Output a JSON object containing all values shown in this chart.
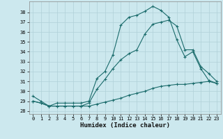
{
  "xlabel": "Humidex (Indice chaleur)",
  "xlim": [
    -0.5,
    23.5
  ],
  "ylim": [
    27.7,
    39.1
  ],
  "yticks": [
    28,
    29,
    30,
    31,
    32,
    33,
    34,
    35,
    36,
    37,
    38
  ],
  "xticks": [
    0,
    1,
    2,
    3,
    4,
    5,
    6,
    7,
    8,
    9,
    10,
    11,
    12,
    13,
    14,
    15,
    16,
    17,
    18,
    19,
    20,
    21,
    22,
    23
  ],
  "background_color": "#cce8ee",
  "grid_color": "#b0d0d8",
  "line_color": "#1a6b6b",
  "line1_y": [
    29.5,
    29.0,
    28.5,
    28.8,
    28.8,
    28.8,
    28.8,
    29.0,
    31.3,
    32.0,
    33.7,
    36.7,
    37.5,
    37.7,
    38.1,
    38.6,
    38.2,
    37.5,
    35.2,
    33.5,
    34.0,
    32.3,
    31.1,
    30.8
  ],
  "line2_y": [
    29.0,
    28.8,
    28.5,
    28.5,
    28.5,
    28.5,
    28.5,
    28.8,
    30.2,
    31.2,
    32.3,
    33.2,
    33.8,
    34.2,
    35.8,
    36.8,
    37.0,
    37.2,
    36.6,
    34.2,
    34.2,
    32.5,
    31.8,
    31.0
  ],
  "line3_y": [
    29.0,
    28.8,
    28.5,
    28.5,
    28.5,
    28.5,
    28.5,
    28.5,
    28.7,
    28.9,
    29.1,
    29.3,
    29.6,
    29.8,
    30.0,
    30.3,
    30.5,
    30.6,
    30.7,
    30.7,
    30.8,
    30.9,
    31.0,
    30.8
  ]
}
